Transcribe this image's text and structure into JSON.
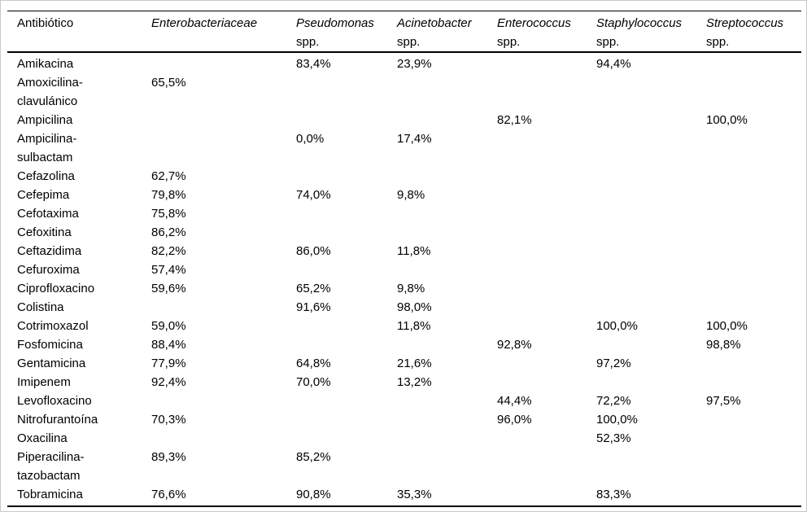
{
  "table": {
    "columns": [
      {
        "label": "Antibiótico"
      },
      {
        "genus": "Enterobacteriaceae",
        "suffix": ""
      },
      {
        "genus": "Pseudomonas",
        "suffix": "spp."
      },
      {
        "genus": "Acinetobacter",
        "suffix": "spp."
      },
      {
        "genus": "Enterococcus",
        "suffix": "spp."
      },
      {
        "genus": "Staphylococcus",
        "suffix": "spp."
      },
      {
        "genus": "Streptococcus",
        "suffix": "spp."
      }
    ],
    "rows": [
      {
        "antibiotic": "Amikacina",
        "values": [
          "",
          "83,4%",
          "23,9%",
          "",
          "94,4%",
          ""
        ]
      },
      {
        "antibiotic": [
          "Amoxicilina-",
          "clavulánico"
        ],
        "values": [
          "65,5%",
          "",
          "",
          "",
          "",
          ""
        ]
      },
      {
        "antibiotic": "Ampicilina",
        "values": [
          "",
          "",
          "",
          "82,1%",
          "",
          "100,0%"
        ]
      },
      {
        "antibiotic": [
          "Ampicilina-",
          "sulbactam"
        ],
        "values": [
          "",
          "0,0%",
          "17,4%",
          "",
          "",
          ""
        ]
      },
      {
        "antibiotic": "Cefazolina",
        "values": [
          "62,7%",
          "",
          "",
          "",
          "",
          ""
        ]
      },
      {
        "antibiotic": "Cefepima",
        "values": [
          "79,8%",
          "74,0%",
          "9,8%",
          "",
          "",
          ""
        ]
      },
      {
        "antibiotic": "Cefotaxima",
        "values": [
          "75,8%",
          "",
          "",
          "",
          "",
          ""
        ]
      },
      {
        "antibiotic": "Cefoxitina",
        "values": [
          "86,2%",
          "",
          "",
          "",
          "",
          ""
        ]
      },
      {
        "antibiotic": "Ceftazidima",
        "values": [
          "82,2%",
          "86,0%",
          "11,8%",
          "",
          "",
          ""
        ]
      },
      {
        "antibiotic": "Cefuroxima",
        "values": [
          "57,4%",
          "",
          "",
          "",
          "",
          ""
        ]
      },
      {
        "antibiotic": "Ciprofloxacino",
        "values": [
          "59,6%",
          "65,2%",
          "9,8%",
          "",
          "",
          ""
        ]
      },
      {
        "antibiotic": "Colistina",
        "values": [
          "",
          "91,6%",
          "98,0%",
          "",
          "",
          ""
        ]
      },
      {
        "antibiotic": "Cotrimoxazol",
        "values": [
          "59,0%",
          "",
          "11,8%",
          "",
          "100,0%",
          "100,0%"
        ]
      },
      {
        "antibiotic": "Fosfomicina",
        "values": [
          "88,4%",
          "",
          "",
          "92,8%",
          "",
          "98,8%"
        ]
      },
      {
        "antibiotic": "Gentamicina",
        "values": [
          "77,9%",
          "64,8%",
          "21,6%",
          "",
          "97,2%",
          ""
        ]
      },
      {
        "antibiotic": "Imipenem",
        "values": [
          "92,4%",
          "70,0%",
          "13,2%",
          "",
          "",
          ""
        ]
      },
      {
        "antibiotic": "Levofloxacino",
        "values": [
          "",
          "",
          "",
          "44,4%",
          "72,2%",
          "97,5%"
        ]
      },
      {
        "antibiotic": "Nitrofurantoína",
        "values": [
          "70,3%",
          "",
          "",
          "96,0%",
          "100,0%",
          ""
        ]
      },
      {
        "antibiotic": "Oxacilina",
        "values": [
          "",
          "",
          "",
          "",
          "52,3%",
          ""
        ]
      },
      {
        "antibiotic": [
          "Piperacilina-",
          "tazobactam"
        ],
        "values": [
          "89,3%",
          "85,2%",
          "",
          "",
          "",
          ""
        ]
      },
      {
        "antibiotic": "Tobramicina",
        "values": [
          "76,6%",
          "90,8%",
          "35,3%",
          "",
          "83,3%",
          ""
        ]
      }
    ]
  }
}
